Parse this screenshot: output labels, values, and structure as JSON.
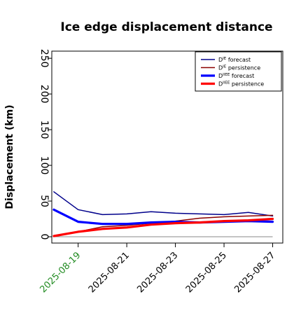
{
  "chart_data": {
    "type": "line",
    "title": "Ice edge displacement distance",
    "xlabel": "",
    "ylabel": "Displacement (km)",
    "x": [
      "2025-08-18",
      "2025-08-19",
      "2025-08-20",
      "2025-08-21",
      "2025-08-22",
      "2025-08-23",
      "2025-08-24",
      "2025-08-25",
      "2025-08-26",
      "2025-08-27"
    ],
    "x_tick_labels": [
      "2025-08-19",
      "2025-08-21",
      "2025-08-23",
      "2025-08-25",
      "2025-08-27"
    ],
    "highlighted_tick": "2025-08-19",
    "highlight_color": "#228b22",
    "ylim": [
      0,
      260
    ],
    "xlim": [
      "2025-08-17T22:00",
      "2025-08-27T10:00"
    ],
    "y_ticks": [
      0,
      50,
      100,
      150,
      200,
      250
    ],
    "grid": false,
    "reference_line": {
      "y": 0,
      "color": "#888888"
    },
    "legend_position": "top-right",
    "series": [
      {
        "name": "D^IE forecast",
        "legend_base": "D",
        "legend_sup": "IE",
        "legend_suffix": " forecast",
        "color": "#00008b",
        "style": "thin",
        "values": [
          63,
          38,
          31,
          32,
          35,
          33,
          32,
          31,
          34,
          29
        ]
      },
      {
        "name": "D^IE persistence",
        "legend_base": "D",
        "legend_sup": "IE",
        "legend_suffix": " persistence",
        "color": "#8b0000",
        "style": "thin",
        "values": [
          1,
          7,
          14,
          16,
          19,
          22,
          26,
          28,
          29,
          30
        ]
      },
      {
        "name": "D^IIEE forecast",
        "legend_base": "D",
        "legend_sup": "IIEE",
        "legend_suffix": " forecast",
        "color": "#0000ff",
        "style": "thick",
        "values": [
          38,
          21,
          18,
          18,
          20,
          21,
          20,
          21,
          22,
          21
        ]
      },
      {
        "name": "D^IIEE persistence",
        "legend_base": "D",
        "legend_sup": "IIEE",
        "legend_suffix": " persistence",
        "color": "#ff0000",
        "style": "thick",
        "values": [
          1,
          7,
          11,
          13,
          17,
          19,
          20,
          22,
          23,
          25
        ]
      }
    ]
  }
}
